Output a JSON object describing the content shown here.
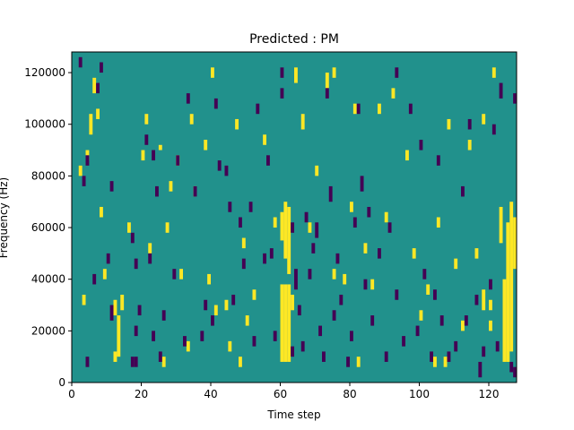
{
  "chart_data": {
    "type": "heatmap",
    "title": "Predicted : PM",
    "xlabel": "Time step",
    "ylabel": "Frequency (Hz)",
    "xlim": [
      0,
      128
    ],
    "ylim": [
      0,
      128000
    ],
    "xticks": [
      0,
      20,
      40,
      60,
      80,
      100,
      120
    ],
    "xtick_labels": [
      "0",
      "20",
      "40",
      "60",
      "80",
      "100",
      "120"
    ],
    "yticks": [
      0,
      20000,
      40000,
      60000,
      80000,
      100000,
      120000
    ],
    "ytick_labels": [
      "0",
      "20000",
      "40000",
      "60000",
      "80000",
      "100000",
      "120000"
    ],
    "grid": false,
    "legend": "none",
    "colormap": "viridis",
    "colors": {
      "background": "#21918c",
      "high": "#fde725",
      "low": "#440154"
    },
    "cell_height_hz": 2000,
    "high_cells": [
      [
        60,
        8000,
        38000
      ],
      [
        61,
        8000,
        38000
      ],
      [
        62,
        8000,
        38000
      ],
      [
        60,
        55000,
        66000
      ],
      [
        61,
        48000,
        70000
      ],
      [
        62,
        42000,
        68000
      ],
      [
        124,
        8000,
        40000
      ],
      [
        125,
        8000,
        62000
      ],
      [
        126,
        12000,
        70000
      ],
      [
        127,
        44000,
        64000
      ],
      [
        123,
        54000,
        68000
      ],
      [
        13,
        10000,
        26000
      ],
      [
        12,
        8000,
        12000
      ],
      [
        2,
        80000,
        84000
      ],
      [
        4,
        86000,
        90000
      ],
      [
        5,
        96000,
        104000
      ],
      [
        7,
        102000,
        106000
      ],
      [
        6,
        112000,
        118000
      ],
      [
        3,
        30000,
        34000
      ],
      [
        8,
        64000,
        68000
      ],
      [
        9,
        40000,
        44000
      ],
      [
        12,
        26000,
        32000
      ],
      [
        14,
        28000,
        34000
      ],
      [
        16,
        58000,
        62000
      ],
      [
        20,
        86000,
        90000
      ],
      [
        21,
        100000,
        104000
      ],
      [
        22,
        50000,
        54000
      ],
      [
        25,
        90000,
        92000
      ],
      [
        27,
        58000,
        62000
      ],
      [
        28,
        74000,
        78000
      ],
      [
        30,
        84000,
        88000
      ],
      [
        31,
        40000,
        44000
      ],
      [
        34,
        100000,
        104000
      ],
      [
        35,
        72000,
        76000
      ],
      [
        38,
        90000,
        94000
      ],
      [
        39,
        38000,
        42000
      ],
      [
        40,
        118000,
        122000
      ],
      [
        41,
        26000,
        30000
      ],
      [
        44,
        28000,
        32000
      ],
      [
        45,
        12000,
        16000
      ],
      [
        47,
        98000,
        102000
      ],
      [
        50,
        22000,
        26000
      ],
      [
        52,
        32000,
        36000
      ],
      [
        55,
        92000,
        96000
      ],
      [
        58,
        60000,
        64000
      ],
      [
        63,
        28000,
        34000
      ],
      [
        64,
        116000,
        122000
      ],
      [
        66,
        98000,
        104000
      ],
      [
        68,
        58000,
        62000
      ],
      [
        70,
        80000,
        84000
      ],
      [
        73,
        114000,
        120000
      ],
      [
        75,
        40000,
        44000
      ],
      [
        78,
        38000,
        42000
      ],
      [
        80,
        66000,
        70000
      ],
      [
        81,
        104000,
        108000
      ],
      [
        84,
        50000,
        54000
      ],
      [
        86,
        36000,
        40000
      ],
      [
        88,
        104000,
        108000
      ],
      [
        90,
        62000,
        66000
      ],
      [
        92,
        110000,
        114000
      ],
      [
        96,
        86000,
        90000
      ],
      [
        98,
        48000,
        52000
      ],
      [
        100,
        24000,
        28000
      ],
      [
        102,
        34000,
        38000
      ],
      [
        105,
        60000,
        64000
      ],
      [
        108,
        98000,
        102000
      ],
      [
        110,
        44000,
        48000
      ],
      [
        112,
        20000,
        24000
      ],
      [
        114,
        90000,
        94000
      ],
      [
        116,
        48000,
        52000
      ],
      [
        118,
        100000,
        104000
      ],
      [
        120,
        28000,
        32000
      ],
      [
        121,
        118000,
        122000
      ],
      [
        48,
        6000,
        10000
      ],
      [
        75,
        118000,
        122000
      ],
      [
        82,
        6000,
        10000
      ],
      [
        104,
        6000,
        10000
      ],
      [
        107,
        6000,
        10000
      ],
      [
        118,
        28000,
        36000
      ],
      [
        120,
        20000,
        24000
      ],
      [
        26,
        6000,
        10000
      ],
      [
        33,
        12000,
        16000
      ],
      [
        49,
        52000,
        56000
      ]
    ],
    "low_cells": [
      [
        2,
        122000,
        126000
      ],
      [
        8,
        120000,
        124000
      ],
      [
        7,
        112000,
        116000
      ],
      [
        4,
        84000,
        88000
      ],
      [
        3,
        76000,
        80000
      ],
      [
        4,
        6000,
        10000
      ],
      [
        6,
        38000,
        42000
      ],
      [
        10,
        46000,
        50000
      ],
      [
        11,
        24000,
        30000
      ],
      [
        11,
        74000,
        78000
      ],
      [
        17,
        6000,
        10000
      ],
      [
        18,
        6000,
        10000
      ],
      [
        18,
        18000,
        22000
      ],
      [
        19,
        26000,
        30000
      ],
      [
        17,
        54000,
        58000
      ],
      [
        18,
        44000,
        48000
      ],
      [
        21,
        92000,
        96000
      ],
      [
        22,
        46000,
        50000
      ],
      [
        23,
        16000,
        20000
      ],
      [
        23,
        86000,
        90000
      ],
      [
        24,
        72000,
        76000
      ],
      [
        25,
        8000,
        12000
      ],
      [
        26,
        24000,
        28000
      ],
      [
        29,
        40000,
        44000
      ],
      [
        30,
        84000,
        88000
      ],
      [
        32,
        14000,
        18000
      ],
      [
        33,
        108000,
        112000
      ],
      [
        35,
        72000,
        76000
      ],
      [
        37,
        16000,
        20000
      ],
      [
        38,
        28000,
        32000
      ],
      [
        40,
        22000,
        26000
      ],
      [
        41,
        106000,
        110000
      ],
      [
        42,
        82000,
        86000
      ],
      [
        44,
        80000,
        84000
      ],
      [
        45,
        66000,
        70000
      ],
      [
        46,
        30000,
        34000
      ],
      [
        48,
        60000,
        64000
      ],
      [
        49,
        44000,
        48000
      ],
      [
        51,
        66000,
        70000
      ],
      [
        52,
        14000,
        18000
      ],
      [
        53,
        104000,
        108000
      ],
      [
        55,
        46000,
        50000
      ],
      [
        56,
        84000,
        88000
      ],
      [
        57,
        48000,
        52000
      ],
      [
        58,
        16000,
        20000
      ],
      [
        60,
        110000,
        114000
      ],
      [
        63,
        10000,
        14000
      ],
      [
        63,
        58000,
        62000
      ],
      [
        64,
        36000,
        44000
      ],
      [
        65,
        26000,
        30000
      ],
      [
        66,
        12000,
        16000
      ],
      [
        67,
        62000,
        66000
      ],
      [
        68,
        40000,
        44000
      ],
      [
        69,
        50000,
        54000
      ],
      [
        70,
        56000,
        62000
      ],
      [
        71,
        18000,
        22000
      ],
      [
        72,
        8000,
        12000
      ],
      [
        73,
        110000,
        114000
      ],
      [
        74,
        70000,
        76000
      ],
      [
        75,
        24000,
        28000
      ],
      [
        76,
        46000,
        50000
      ],
      [
        77,
        30000,
        34000
      ],
      [
        79,
        6000,
        10000
      ],
      [
        80,
        16000,
        20000
      ],
      [
        81,
        60000,
        64000
      ],
      [
        82,
        104000,
        108000
      ],
      [
        83,
        74000,
        80000
      ],
      [
        84,
        36000,
        40000
      ],
      [
        85,
        64000,
        68000
      ],
      [
        86,
        22000,
        26000
      ],
      [
        88,
        48000,
        52000
      ],
      [
        90,
        8000,
        12000
      ],
      [
        91,
        58000,
        62000
      ],
      [
        93,
        32000,
        36000
      ],
      [
        95,
        14000,
        18000
      ],
      [
        97,
        104000,
        108000
      ],
      [
        99,
        18000,
        22000
      ],
      [
        100,
        90000,
        94000
      ],
      [
        101,
        40000,
        44000
      ],
      [
        103,
        8000,
        12000
      ],
      [
        104,
        32000,
        36000
      ],
      [
        105,
        84000,
        88000
      ],
      [
        106,
        22000,
        26000
      ],
      [
        108,
        8000,
        12000
      ],
      [
        110,
        12000,
        16000
      ],
      [
        112,
        72000,
        76000
      ],
      [
        113,
        22000,
        26000
      ],
      [
        114,
        98000,
        102000
      ],
      [
        116,
        30000,
        34000
      ],
      [
        117,
        2000,
        8000
      ],
      [
        118,
        10000,
        14000
      ],
      [
        120,
        36000,
        40000
      ],
      [
        121,
        96000,
        100000
      ],
      [
        122,
        12000,
        16000
      ],
      [
        123,
        110000,
        116000
      ],
      [
        126,
        4000,
        8000
      ],
      [
        127,
        2000,
        6000
      ],
      [
        127,
        108000,
        112000
      ],
      [
        93,
        118000,
        122000
      ],
      [
        60,
        118000,
        122000
      ]
    ]
  }
}
